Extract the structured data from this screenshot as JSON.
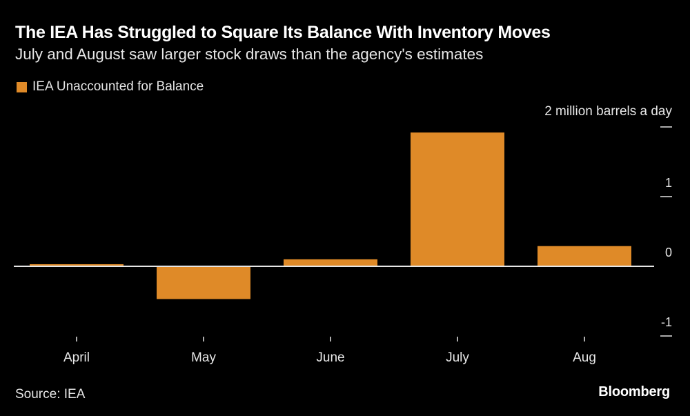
{
  "header": {
    "title": "The IEA Has Struggled to Square Its Balance With Inventory Moves",
    "subtitle": "July and August saw larger stock draws than the agency's estimates"
  },
  "legend": {
    "items": [
      {
        "label": "IEA Unaccounted for Balance",
        "color": "#DF8A28"
      }
    ]
  },
  "footer": {
    "source": "Source: IEA",
    "brand": "Bloomberg"
  },
  "chart_data": {
    "type": "bar",
    "title": "The IEA Has Struggled to Square Its Balance With Inventory Moves",
    "subtitle": "July and August saw larger stock draws than the agency's estimates",
    "xlabel": "",
    "ylabel": "2 million barrels a day",
    "unit_label": "2 million barrels a day",
    "categories": [
      "April",
      "May",
      "June",
      "July",
      "Aug"
    ],
    "series": [
      {
        "name": "IEA Unaccounted for Balance",
        "color": "#DF8A28",
        "values": [
          0.03,
          -0.47,
          0.1,
          1.92,
          0.29
        ]
      }
    ],
    "ylim": [
      -1,
      2
    ],
    "yticks": [
      -1,
      0,
      1,
      2
    ],
    "ytick_labels": [
      "-1",
      "0",
      "1",
      ""
    ],
    "y_axis_position": "right",
    "legend_position": "top-left",
    "grid": false,
    "source": "Source: IEA"
  }
}
